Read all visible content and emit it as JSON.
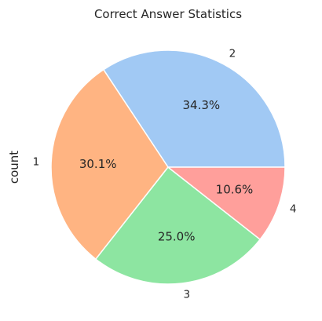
{
  "chart_data": {
    "type": "pie",
    "title": "Correct Answer Statistics",
    "ylabel": "count",
    "categories": [
      "2",
      "1",
      "3",
      "4"
    ],
    "values": [
      34.3,
      30.1,
      25.0,
      10.6
    ],
    "percent_labels": [
      "34.3%",
      "30.1%",
      "25.0%",
      "10.6%"
    ],
    "colors": [
      "#a1c9f4",
      "#ffb482",
      "#8de5a1",
      "#ff9f9b"
    ],
    "start_angle_deg": 0,
    "direction": "counterclockwise",
    "edge_color": "#ffffff"
  }
}
